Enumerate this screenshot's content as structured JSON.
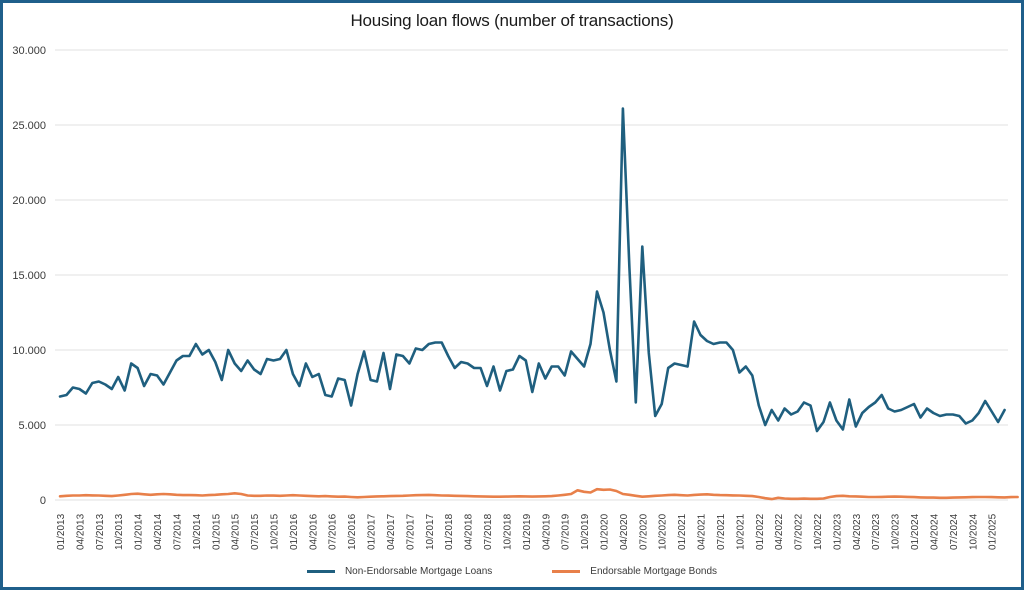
{
  "chart_data": {
    "type": "line",
    "title": "Housing loan flows (number of transactions)",
    "xlabel": "",
    "ylabel": "",
    "ylim": [
      0,
      30000
    ],
    "yticks": [
      0,
      5000,
      10000,
      15000,
      20000,
      25000,
      30000
    ],
    "ytick_labels": [
      "0",
      "5.000",
      "10.000",
      "15.000",
      "20.000",
      "25.000",
      "30.000"
    ],
    "grid": "horizontal",
    "legend_position": "bottom",
    "x_start": "01/2013",
    "x_frequency": "monthly",
    "xtick_labels": [
      "01/2013",
      "04/2013",
      "07/2013",
      "10/2013",
      "01/2014",
      "04/2014",
      "07/2014",
      "10/2014",
      "01/2015",
      "04/2015",
      "07/2015",
      "10/2015",
      "01/2016",
      "04/2016",
      "07/2016",
      "10/2016",
      "01/2017",
      "04/2017",
      "07/2017",
      "10/2017",
      "01/2018",
      "04/2018",
      "07/2018",
      "10/2018",
      "01/2019",
      "04/2019",
      "07/2019",
      "10/2019",
      "01/2020",
      "04/2020",
      "07/2020",
      "10/2020",
      "01/2021",
      "04/2021",
      "07/2021",
      "10/2021",
      "01/2022",
      "04/2022",
      "07/2022",
      "10/2022",
      "01/2023",
      "04/2023",
      "07/2023",
      "10/2023",
      "01/2024",
      "04/2024",
      "07/2024",
      "10/2024",
      "01/2025"
    ],
    "series": [
      {
        "name": "Non-Endorsable Mortgage Loans",
        "color": "#1f5f7f",
        "values": [
          6900,
          7000,
          7500,
          7400,
          7100,
          7800,
          7900,
          7700,
          7400,
          8200,
          7300,
          9100,
          8800,
          7600,
          8400,
          8300,
          7700,
          8500,
          9300,
          9600,
          9600,
          10400,
          9700,
          10000,
          9200,
          8000,
          10000,
          9100,
          8600,
          9300,
          8700,
          8400,
          9400,
          9300,
          9400,
          10000,
          8400,
          7600,
          9100,
          8200,
          8400,
          7000,
          6900,
          8100,
          8000,
          6300,
          8400,
          9900,
          8000,
          7900,
          9800,
          7400,
          9700,
          9600,
          9100,
          10100,
          10000,
          10400,
          10500,
          10500,
          9600,
          8800,
          9200,
          9100,
          8800,
          8800,
          7600,
          8900,
          7300,
          8600,
          8700,
          9600,
          9300,
          7200,
          9100,
          8100,
          8900,
          8900,
          8300,
          9900,
          9400,
          8900,
          10400,
          13900,
          12500,
          10000,
          7900,
          26100,
          15500,
          6500,
          16900,
          9800,
          5600,
          6400,
          8800,
          9100,
          9000,
          8900,
          11900,
          11000,
          10600,
          10400,
          10500,
          10500,
          10000,
          8500,
          8900,
          8300,
          6300,
          5000,
          6000,
          5300,
          6100,
          5700,
          5900,
          6500,
          6300,
          4600,
          5200,
          6500,
          5300,
          4700,
          6700,
          4900,
          5800,
          6200,
          6500,
          7000,
          6100,
          5900,
          6000,
          6200,
          6400,
          5500,
          6100,
          5800,
          5600,
          5700,
          5700,
          5600,
          5100,
          5300,
          5800,
          6600,
          5900,
          5200,
          6000
        ]
      },
      {
        "name": "Endorsable Mortgage Bonds",
        "color": "#e8804a",
        "values": [
          250,
          280,
          300,
          300,
          320,
          310,
          300,
          280,
          260,
          300,
          350,
          400,
          420,
          380,
          350,
          380,
          400,
          380,
          350,
          330,
          330,
          320,
          300,
          330,
          350,
          380,
          400,
          450,
          400,
          300,
          280,
          280,
          300,
          290,
          280,
          300,
          320,
          300,
          280,
          260,
          250,
          260,
          240,
          220,
          230,
          200,
          180,
          200,
          220,
          240,
          250,
          260,
          270,
          280,
          300,
          320,
          330,
          340,
          320,
          300,
          290,
          280,
          270,
          260,
          250,
          240,
          230,
          220,
          220,
          230,
          240,
          250,
          240,
          230,
          240,
          250,
          260,
          300,
          350,
          400,
          650,
          550,
          500,
          720,
          680,
          700,
          600,
          400,
          350,
          280,
          220,
          250,
          280,
          300,
          330,
          350,
          320,
          300,
          340,
          360,
          380,
          350,
          330,
          320,
          310,
          300,
          280,
          260,
          200,
          120,
          60,
          150,
          100,
          80,
          80,
          90,
          80,
          80,
          100,
          200,
          260,
          280,
          250,
          240,
          220,
          200,
          200,
          210,
          220,
          230,
          220,
          210,
          190,
          170,
          160,
          160,
          150,
          150,
          160,
          170,
          180,
          190,
          200,
          200,
          190,
          180,
          170,
          190,
          200
        ]
      }
    ]
  },
  "legend": {
    "items": [
      {
        "label": "Non-Endorsable Mortgage Loans",
        "color": "#1f5f7f"
      },
      {
        "label": "Endorsable Mortgage Bonds",
        "color": "#e8804a"
      }
    ]
  }
}
